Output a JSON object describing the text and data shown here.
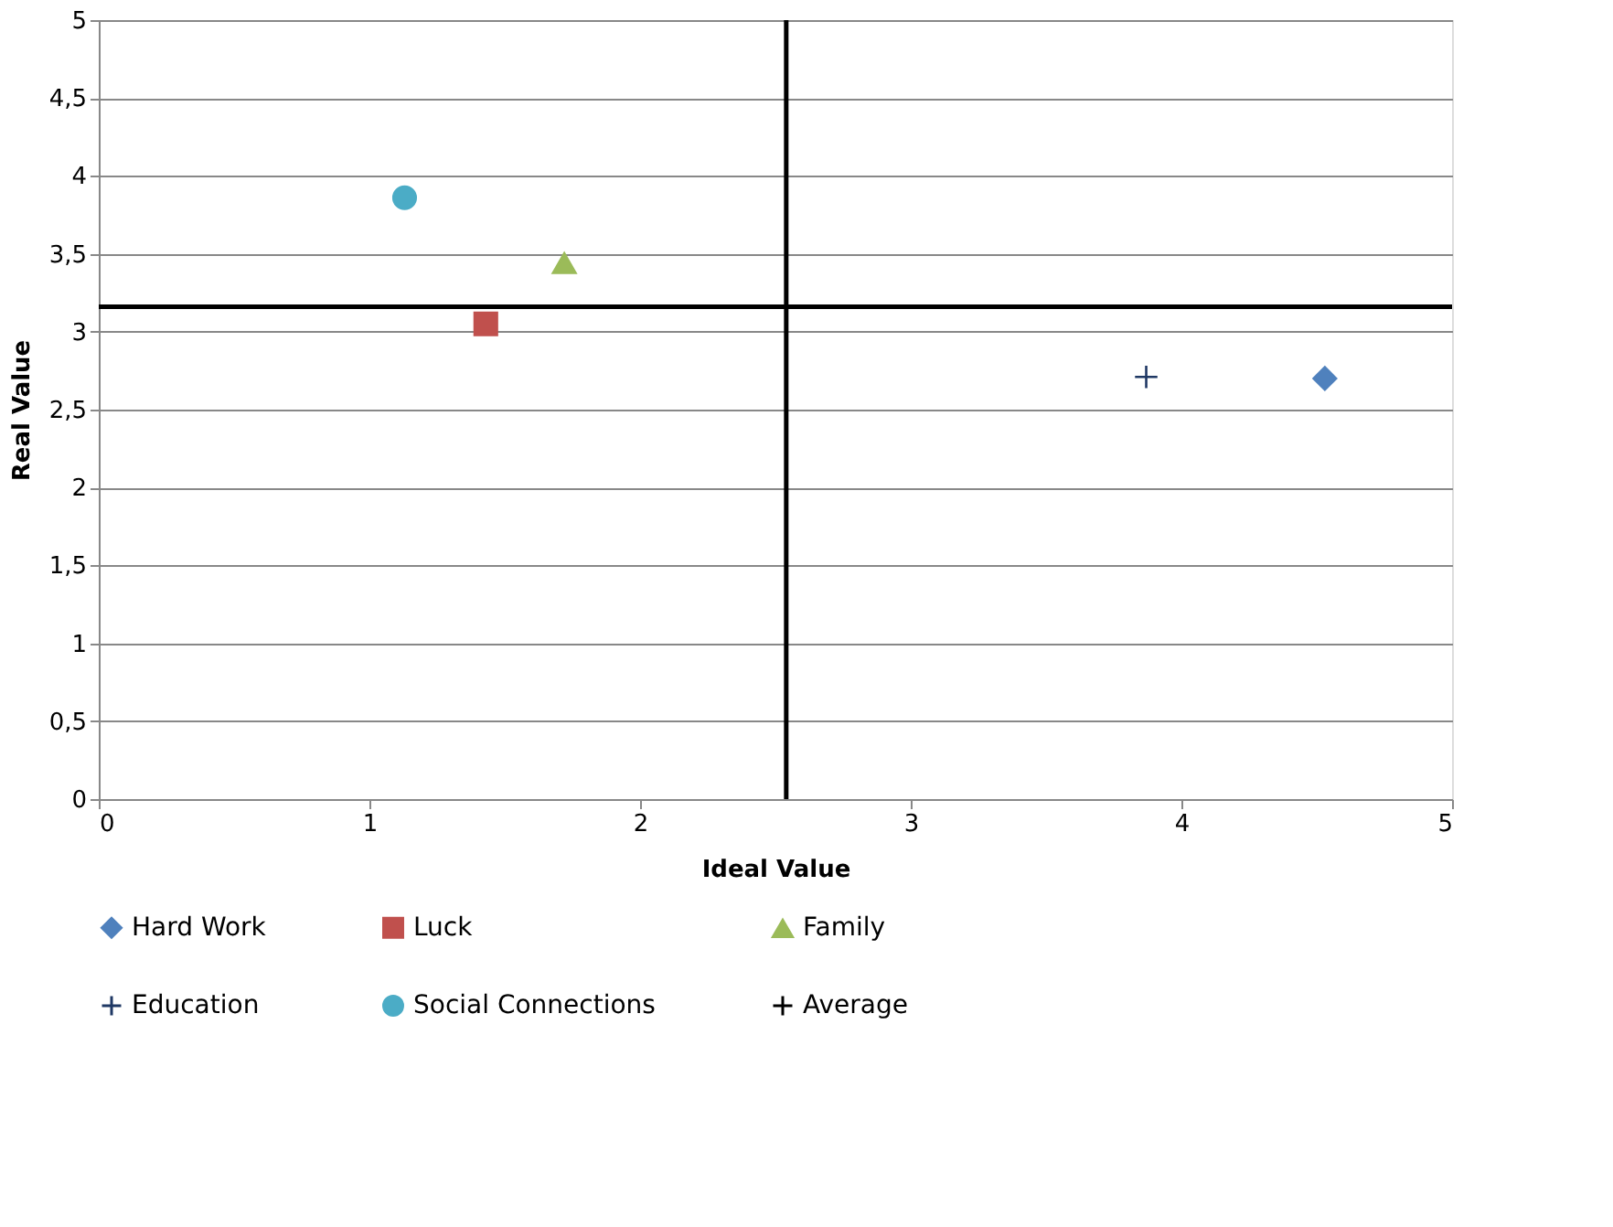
{
  "chart_data": {
    "type": "scatter",
    "xlabel": "Ideal   Value",
    "ylabel": "Real   Value",
    "series": [
      {
        "name": "Hard Work",
        "color": "#4f81bd",
        "marker": "diamond",
        "x": [
          4.53
        ],
        "values": [
          2.7
        ]
      },
      {
        "name": "Luck",
        "color": "#c0504d",
        "marker": "square",
        "x": [
          1.43
        ],
        "values": [
          3.05
        ]
      },
      {
        "name": "Family",
        "color": "#9bbb59",
        "marker": "triangle",
        "x": [
          1.72
        ],
        "values": [
          3.44
        ]
      },
      {
        "name": "Education",
        "color": "#1f3864",
        "marker": "cross",
        "x": [
          3.87
        ],
        "values": [
          2.71
        ]
      },
      {
        "name": "Social Connections",
        "color": "#4bacc6",
        "marker": "circle",
        "x": [
          1.13
        ],
        "values": [
          3.86
        ]
      },
      {
        "name": "Average",
        "color": "#000000",
        "marker": "cross"
      }
    ],
    "ref_lines": [
      {
        "axis": "x",
        "value": 2.54,
        "color": "#000000"
      },
      {
        "axis": "y",
        "value": 3.16,
        "color": "#000000"
      }
    ],
    "xlim": [
      0,
      5
    ],
    "xticks": [
      0,
      1,
      2,
      3,
      4,
      5
    ],
    "ylim": [
      0,
      5
    ],
    "yticks": [
      0,
      {
        "value": 0.5,
        "label": "0,5"
      },
      1,
      {
        "value": 1.5,
        "label": "1,5"
      },
      2,
      {
        "value": 2.5,
        "label": "2,5"
      },
      3,
      {
        "value": 3.5,
        "label": "3,5"
      },
      4,
      {
        "value": 4.5,
        "label": "4,5"
      },
      5
    ],
    "grid": "y",
    "legend": "bottom"
  }
}
